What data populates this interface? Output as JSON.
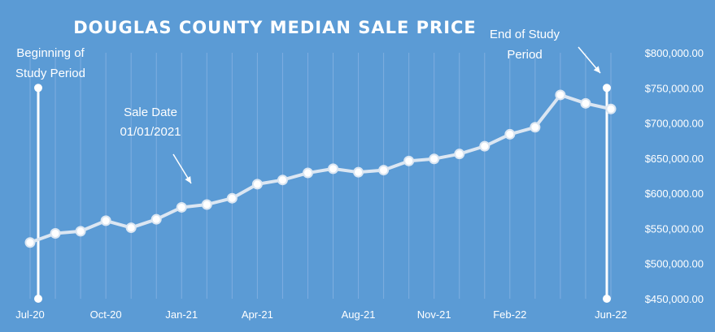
{
  "chart_data": {
    "type": "line",
    "title": "DOUGLAS COUNTY MEDIAN SALE PRICE",
    "x": [
      "Jul-20",
      "Aug-20",
      "Sep-20",
      "Oct-20",
      "Nov-20",
      "Dec-20",
      "Jan-21",
      "Feb-21",
      "Mar-21",
      "Apr-21",
      "May-21",
      "Jun-21",
      "Jul-21",
      "Aug-21",
      "Sep-21",
      "Oct-21",
      "Nov-21",
      "Dec-21",
      "Jan-22",
      "Feb-22",
      "Mar-22",
      "Apr-22",
      "May-22",
      "Jun-22"
    ],
    "x_tick_labels": [
      "Jul-20",
      "Oct-20",
      "Jan-21",
      "Apr-21",
      "Aug-21",
      "Nov-21",
      "Feb-22",
      "Jun-22"
    ],
    "series": [
      {
        "name": "",
        "values": [
          530000,
          543000,
          546000,
          561000,
          551000,
          563000,
          580000,
          584000,
          593000,
          613000,
          619000,
          629000,
          635000,
          630000,
          633000,
          646000,
          649000,
          656000,
          667000,
          684000,
          694000,
          740000,
          728000,
          720000
        ]
      }
    ],
    "ylim": [
      450000,
      800000
    ],
    "y_tick_labels": [
      "$800,000.00",
      "$750,000.00",
      "$700,000.00",
      "$650,000.00",
      "$600,000.00",
      "$550,000.00",
      "$500,000.00",
      "$450,000.00"
    ],
    "y_ticks": [
      800000,
      750000,
      700000,
      650000,
      600000,
      550000,
      500000,
      450000
    ],
    "grid": "vertical",
    "xlabel": "",
    "ylabel": "",
    "annotations": {
      "beginning": [
        "Beginning of",
        "Study Period"
      ],
      "sale_date": [
        "Sale Date",
        "01/01/2021"
      ],
      "end": [
        "End of Study",
        "Period"
      ]
    },
    "study_period": {
      "start": "Jul-20",
      "end": "Jun-22",
      "marker_range": [
        450000,
        750000
      ]
    }
  },
  "colors": {
    "background": "#5b9bd5",
    "line": "#dbe6f2",
    "marker_fill": "#ffffff",
    "grid": "#7faee0",
    "text": "#ffffff"
  }
}
